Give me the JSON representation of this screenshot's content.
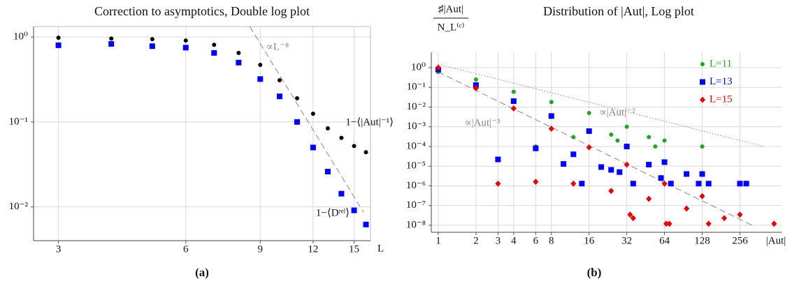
{
  "chart_data": [
    {
      "type": "scatter",
      "title": "Correction to asymptotics, Double log plot",
      "caption": "(a)",
      "xlabel": "L",
      "xscale": "log",
      "yscale": "log",
      "grid": true,
      "legend": "beside",
      "xlim": [
        2.62,
        16.4
      ],
      "ylim": [
        0.004,
        1.33
      ],
      "xticks": [
        3,
        6,
        9,
        12,
        15
      ],
      "yticks": [
        {
          "value": 1,
          "label": "10⁰"
        },
        {
          "value": 0.1,
          "label": "10⁻¹"
        },
        {
          "value": 0.01,
          "label": "10⁻²"
        }
      ],
      "x": [
        3,
        4,
        5,
        6,
        7,
        8,
        9,
        10,
        11,
        12,
        13,
        14,
        15,
        16
      ],
      "series": [
        {
          "name": "1−⟨|Aut|⁻¹⟩",
          "color": "#000000",
          "marker": "circle",
          "values": [
            0.98,
            0.96,
            0.945,
            0.91,
            0.81,
            0.65,
            0.47,
            0.31,
            0.19,
            0.125,
            0.084,
            0.065,
            0.052,
            0.044
          ]
        },
        {
          "name": "1−⟨Dʳᵉˡ⟩",
          "color": "#0000ff",
          "marker": "square",
          "values": [
            0.8,
            0.83,
            0.78,
            0.75,
            0.65,
            0.5,
            0.32,
            0.2,
            0.1,
            0.05,
            0.026,
            0.0143,
            0.0091,
            0.0062
          ]
        }
      ],
      "annotations": [
        {
          "text": "∝L⁻⁸",
          "color": "#888888",
          "style": "dashed",
          "x": [
            8.5,
            15.8
          ],
          "values": [
            1.33,
            0.0086
          ]
        }
      ]
    },
    {
      "type": "scatter",
      "title": "Distribution of |Aut|, Log plot",
      "caption": "(b)",
      "xlabel": "|Aut|",
      "ylabel": {
        "numerator": "♯|Aut|",
        "denominator": "N_L⁽ᶜ⁾"
      },
      "xscale": "log",
      "yscale": "log",
      "grid": true,
      "legend": "upper right",
      "xlim": [
        0.88,
        550
      ],
      "ylim": [
        4.4e-09,
        6
      ],
      "xticks": [
        1,
        2,
        3,
        4,
        6,
        8,
        16,
        32,
        64,
        128,
        256
      ],
      "yticks": [
        {
          "value": 1,
          "label": "10⁰"
        },
        {
          "value": 0.1,
          "label": "10⁻¹"
        },
        {
          "value": 0.01,
          "label": "10⁻²"
        },
        {
          "value": 0.001,
          "label": "10⁻³"
        },
        {
          "value": 0.0001,
          "label": "10⁻⁴"
        },
        {
          "value": 1e-05,
          "label": "10⁻⁵"
        },
        {
          "value": 1e-06,
          "label": "10⁻⁶"
        },
        {
          "value": 1e-07,
          "label": "10⁻⁷"
        },
        {
          "value": 1e-08,
          "label": "10⁻⁸"
        }
      ],
      "series": [
        {
          "name": "L=11",
          "color": "#1fa81f",
          "marker": "circle",
          "x": [
            1,
            2,
            4,
            6,
            8,
            12,
            16,
            24,
            27,
            32,
            48,
            54,
            64,
            128
          ],
          "values": [
            0.6,
            0.25,
            0.06,
            0.0001,
            0.018,
            0.0003,
            0.005,
            0.0004,
            0.0002,
            0.001,
            0.0003,
            0.0001,
            0.0002,
            0.0001
          ]
        },
        {
          "name": "L=13",
          "color": "#0000ff",
          "marker": "square",
          "x": [
            1,
            2,
            3,
            4,
            6,
            8,
            10,
            12,
            14,
            16,
            20,
            24,
            28,
            32,
            36,
            48,
            60,
            64,
            72,
            96,
            120,
            128,
            144,
            256,
            288
          ],
          "values": [
            0.8,
            0.13,
            2.2e-05,
            0.02,
            8e-05,
            0.0035,
            1.3e-05,
            4e-05,
            1.3e-06,
            0.0006,
            9e-06,
            6.5e-06,
            5e-06,
            0.0001,
            1.3e-06,
            1.2e-05,
            2.5e-06,
            1.6e-05,
            1.3e-06,
            4e-06,
            1.3e-06,
            4e-06,
            1.3e-06,
            1.3e-06,
            1.3e-06
          ]
        },
        {
          "name": "L=15",
          "color": "#ee0000",
          "marker": "diamond",
          "x": [
            1,
            2,
            3,
            4,
            6,
            8,
            12,
            16,
            24,
            32,
            34,
            36,
            48,
            64,
            66,
            70,
            96,
            128,
            144,
            192,
            256,
            480
          ],
          "values": [
            1.0,
            0.09,
            1.3e-06,
            0.0085,
            1.6e-06,
            0.0008,
            1.3e-06,
            9e-05,
            5.5e-07,
            1.2e-05,
            3.5e-08,
            2.3e-08,
            2.2e-07,
            1.3e-06,
            1.2e-08,
            1.2e-08,
            7e-08,
            3e-07,
            1.2e-08,
            2.3e-08,
            3.5e-08,
            1.2e-08
          ]
        }
      ],
      "annotations": [
        {
          "text": "∝|Aut|⁻²",
          "color": "#888888",
          "style": "dotted",
          "x": [
            1,
            400
          ],
          "values": [
            1.5,
            0.0001
          ]
        },
        {
          "text": "∝|Aut|⁻³",
          "color": "#888888",
          "style": "dashed",
          "x": [
            1,
            320
          ],
          "values": [
            0.6,
            1e-08
          ]
        }
      ]
    }
  ]
}
